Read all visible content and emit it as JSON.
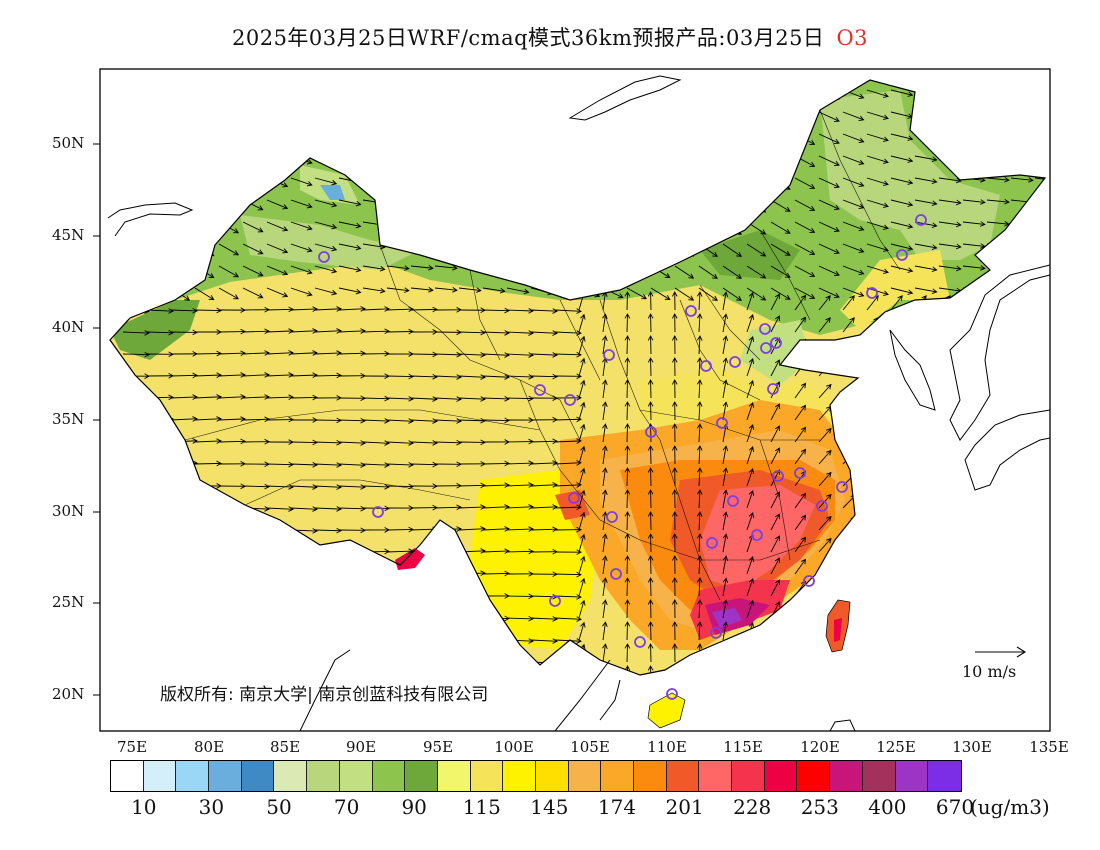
{
  "title": "2025年03月25日WRF/cmaq模式36km预报产品:03月25日",
  "pollutant": "O3",
  "lat_labels": [
    "50N",
    "45N",
    "40N",
    "35N",
    "30N",
    "25N",
    "20N"
  ],
  "lon_labels": [
    "75E",
    "80E",
    "85E",
    "90E",
    "95E",
    "100E",
    "105E",
    "110E",
    "115E",
    "120E",
    "125E",
    "130E",
    "135E"
  ],
  "copyright": "版权所有: 南京大学| 南京创蓝科技有限公司",
  "wind_reference": "10 m/s",
  "legend": {
    "colors": [
      "#ffffff",
      "#d4eefa",
      "#9ad6f5",
      "#6aaede",
      "#3f8ac4",
      "#dbe9b4",
      "#b8d67c",
      "#c2df82",
      "#8cc44e",
      "#6ea83a",
      "#f2f66a",
      "#f5e45a",
      "#fff200",
      "#ffdf00",
      "#f7b34a",
      "#fba828",
      "#fb8b0e",
      "#f05a28",
      "#ff6666",
      "#f4334c",
      "#ee0045",
      "#ff0000",
      "#c8157a",
      "#a4305c",
      "#9d34c6",
      "#7c2ee6"
    ],
    "labels": [
      "10",
      "30",
      "50",
      "70",
      "90",
      "115",
      "145",
      "174",
      "201",
      "228",
      "253",
      "400",
      "670"
    ],
    "unit": "(ug/m3)"
  },
  "stations": 36
}
